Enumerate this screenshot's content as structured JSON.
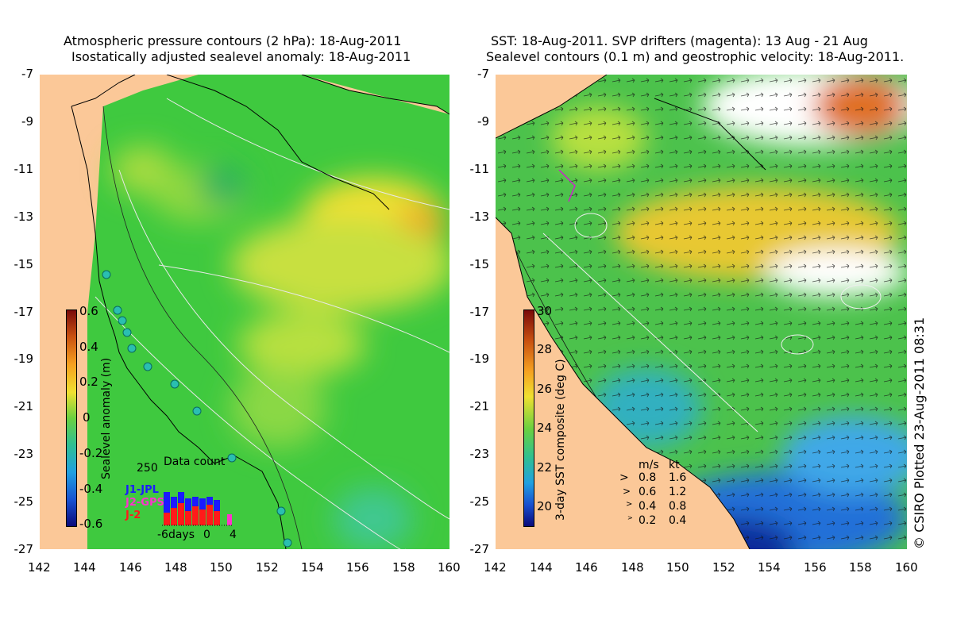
{
  "left_panel": {
    "title_line1": "Atmospheric pressure contours (2 hPa): 18-Aug-2011",
    "title_line2": "Isostatically adjusted sealevel anomaly: 18-Aug-2011",
    "colorbar": {
      "label": "Sealevel anomaly (m)",
      "ticks": [
        "0.6",
        "0.4",
        "0.2",
        "0",
        "-0.2",
        "-0.4",
        "-0.6"
      ]
    },
    "data_count": {
      "title": "Data count",
      "ymax": "250",
      "series": [
        "J1-JPL",
        "J2-GPS",
        "J-2"
      ],
      "series_colors": [
        "#1a1aff",
        "#ff33cc",
        "#ff1a1a"
      ],
      "xlabels": [
        "-6days",
        "0",
        "4"
      ]
    }
  },
  "right_panel": {
    "title_line1": "SST: 18-Aug-2011. SVP drifters (magenta): 13 Aug - 21 Aug",
    "title_line2": "Sealevel contours (0.1 m) and geostrophic velocity: 18-Aug-2011.",
    "colorbar": {
      "label": "3-day SST composite (deg C)",
      "ticks": [
        "30",
        "28",
        "26",
        "24",
        "22",
        "20"
      ]
    },
    "velocity_legend": {
      "header_ms": "m/s",
      "header_kt": "kt",
      "rows": [
        {
          "ms": "0.8",
          "kt": "1.6"
        },
        {
          "ms": "0.6",
          "kt": "1.2"
        },
        {
          "ms": "0.4",
          "kt": "0.8"
        },
        {
          "ms": "0.2",
          "kt": "0.4"
        }
      ]
    }
  },
  "axes": {
    "y_ticks": [
      "-7",
      "-9",
      "-11",
      "-13",
      "-15",
      "-17",
      "-19",
      "-21",
      "-23",
      "-25",
      "-27"
    ],
    "x_ticks": [
      "142",
      "144",
      "146",
      "148",
      "150",
      "152",
      "154",
      "156",
      "158",
      "160"
    ]
  },
  "credit": "© CSIRO Plotted 23-Aug-2011 08:31",
  "colors": {
    "land": "#fbc898",
    "sla_green": "#3fc93f",
    "sst_green": "#4cc24c"
  }
}
